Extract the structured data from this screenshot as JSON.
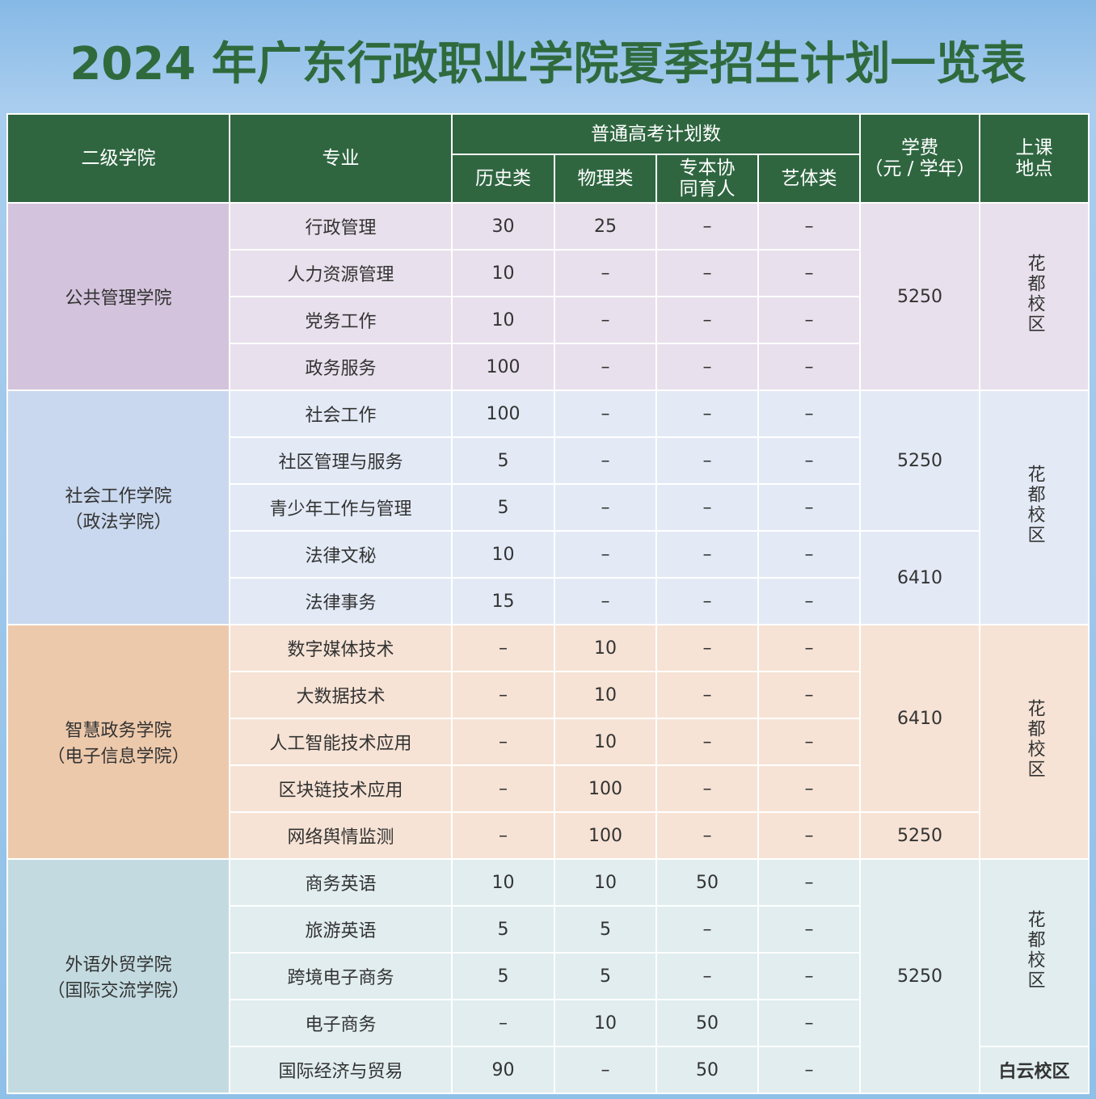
{
  "title": "2024 年广东行政职业学院夏季招生计划一览表",
  "table": {
    "header": {
      "college": "二级学院",
      "major": "专业",
      "plan": "普通高考计划数",
      "plan_columns": [
        "历史类",
        "物理类",
        [
          "专本协",
          "同育人"
        ],
        "艺体类"
      ],
      "fee": [
        "学费",
        "（元 / 学年）"
      ],
      "location": [
        "上课",
        "地点"
      ]
    },
    "groups": [
      {
        "college": [
          "公共管理学院"
        ],
        "rows": [
          [
            "行政管理",
            30,
            25,
            "–",
            "–"
          ],
          [
            "人力资源管理",
            10,
            "–",
            "–",
            "–"
          ],
          [
            "党务工作",
            10,
            "–",
            "–",
            "–"
          ],
          [
            "政务服务",
            100,
            "–",
            "–",
            "–"
          ]
        ],
        "fees": [
          5250
        ],
        "locations": [
          "花都校区"
        ]
      },
      {
        "college": [
          "社会工作学院",
          "（政法学院）"
        ],
        "rows": [
          [
            "社会工作",
            100,
            "–",
            "–",
            "–"
          ],
          [
            "社区管理与服务",
            5,
            "–",
            "–",
            "–"
          ],
          [
            "青少年工作与管理",
            5,
            "–",
            "–",
            "–"
          ],
          [
            "法律文秘",
            10,
            "–",
            "–",
            "–"
          ],
          [
            "法律事务",
            15,
            "–",
            "–",
            "–"
          ]
        ],
        "fees": [
          5250,
          6410
        ],
        "locations": [
          "花都校区"
        ]
      },
      {
        "college": [
          "智慧政务学院",
          "（电子信息学院）"
        ],
        "rows": [
          [
            "数字媒体技术",
            "–",
            10,
            "–",
            "–"
          ],
          [
            "大数据技术",
            "–",
            10,
            "–",
            "–"
          ],
          [
            "人工智能技术应用",
            "–",
            10,
            "–",
            "–"
          ],
          [
            "区块链技术应用",
            "–",
            100,
            "–",
            "–"
          ],
          [
            "网络舆情监测",
            "–",
            100,
            "–",
            "–"
          ]
        ],
        "fees": [
          6410,
          5250
        ],
        "locations": [
          "花都校区"
        ]
      },
      {
        "college": [
          "外语外贸学院",
          "（国际交流学院）"
        ],
        "rows": [
          [
            "商务英语",
            10,
            10,
            50,
            "–"
          ],
          [
            "旅游英语",
            5,
            5,
            "–",
            "–"
          ],
          [
            "跨境电子商务",
            5,
            5,
            "–",
            "–"
          ],
          [
            "电子商务",
            "–",
            10,
            50,
            "–"
          ],
          [
            "国际经济与贸易",
            90,
            "–",
            50,
            "–"
          ]
        ],
        "fees": [
          5250
        ],
        "locations": [
          "花都校区",
          "白云校区"
        ]
      }
    ]
  }
}
